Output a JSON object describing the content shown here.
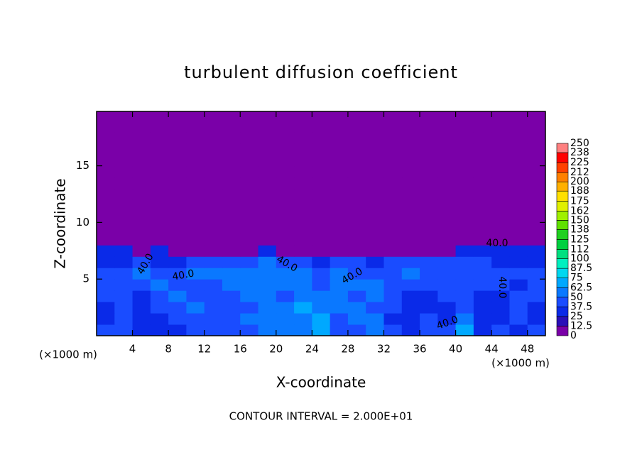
{
  "chart_data": {
    "type": "heatmap",
    "title": "turbulent diffusion coefficient",
    "x_label": "X-coordinate",
    "y_label": "Z-coordinate",
    "x_unit_left": "(×1000 m)",
    "x_unit_right": "(×1000 m)",
    "footnote": "CONTOUR INTERVAL = 2.000E+01",
    "xlim": [
      0,
      50
    ],
    "ylim": [
      0,
      19.8
    ],
    "xticks": [
      4,
      8,
      12,
      16,
      20,
      24,
      28,
      32,
      36,
      40,
      44,
      48
    ],
    "yticks": [
      5,
      10,
      15
    ],
    "x": [
      1,
      3,
      5,
      7,
      9,
      11,
      13,
      15,
      17,
      19,
      21,
      23,
      25,
      27,
      29,
      31,
      33,
      35,
      37,
      39,
      41,
      43,
      45,
      47,
      49
    ],
    "y": [
      0.5,
      1.5,
      2.5,
      3.5,
      4.5,
      5.5,
      6.5,
      7.5,
      8.5,
      9.5,
      10.5,
      11.5,
      12.5,
      13.5,
      14.5,
      15.5,
      16.5,
      17.5,
      18.5,
      19.5
    ],
    "z": [
      [
        40,
        45,
        35,
        30,
        35,
        45,
        40,
        40,
        45,
        50,
        60,
        55,
        70,
        40,
        45,
        60,
        40,
        35,
        45,
        40,
        70,
        35,
        40,
        35,
        40
      ],
      [
        35,
        40,
        30,
        35,
        40,
        45,
        40,
        45,
        50,
        55,
        55,
        60,
        65,
        45,
        50,
        55,
        35,
        30,
        40,
        35,
        55,
        30,
        35,
        40,
        35
      ],
      [
        35,
        40,
        30,
        40,
        45,
        50,
        45,
        40,
        45,
        55,
        50,
        65,
        55,
        50,
        60,
        40,
        40,
        35,
        30,
        35,
        45,
        30,
        30,
        45,
        35
      ],
      [
        40,
        45,
        35,
        40,
        50,
        45,
        40,
        40,
        50,
        60,
        45,
        60,
        50,
        55,
        45,
        55,
        45,
        30,
        35,
        40,
        40,
        35,
        35,
        40,
        40
      ],
      [
        45,
        40,
        45,
        50,
        40,
        40,
        45,
        50,
        55,
        55,
        50,
        55,
        45,
        60,
        50,
        50,
        40,
        45,
        40,
        45,
        45,
        40,
        40,
        35,
        45
      ],
      [
        40,
        40,
        50,
        45,
        45,
        50,
        50,
        55,
        60,
        50,
        55,
        50,
        40,
        50,
        45,
        40,
        45,
        50,
        45,
        45,
        40,
        45,
        45,
        40,
        40
      ],
      [
        35,
        35,
        40,
        30,
        35,
        40,
        40,
        45,
        45,
        55,
        40,
        45,
        35,
        40,
        40,
        35,
        40,
        40,
        45,
        40,
        45,
        40,
        35,
        35,
        35
      ],
      [
        30,
        25,
        0,
        25,
        0,
        0,
        0,
        0,
        0,
        30,
        0,
        0,
        0,
        0,
        0,
        0,
        0,
        0,
        0,
        0,
        30,
        30,
        30,
        30,
        25
      ],
      [
        0,
        0,
        0,
        0,
        0,
        0,
        0,
        0,
        0,
        0,
        0,
        0,
        0,
        0,
        0,
        0,
        0,
        0,
        0,
        0,
        0,
        0,
        0,
        0,
        0
      ],
      [
        0,
        0,
        0,
        0,
        0,
        0,
        0,
        0,
        0,
        0,
        0,
        0,
        0,
        0,
        0,
        0,
        0,
        0,
        0,
        0,
        0,
        0,
        0,
        0,
        0
      ],
      [
        0,
        0,
        0,
        0,
        0,
        0,
        0,
        0,
        0,
        0,
        0,
        0,
        0,
        0,
        0,
        0,
        0,
        0,
        0,
        0,
        0,
        0,
        0,
        0,
        0
      ],
      [
        0,
        0,
        0,
        0,
        0,
        0,
        0,
        0,
        0,
        0,
        0,
        0,
        0,
        0,
        0,
        0,
        0,
        0,
        0,
        0,
        0,
        0,
        0,
        0,
        0
      ],
      [
        0,
        0,
        0,
        0,
        0,
        0,
        0,
        0,
        0,
        0,
        0,
        0,
        0,
        0,
        0,
        0,
        0,
        0,
        0,
        0,
        0,
        0,
        0,
        0,
        0
      ],
      [
        0,
        0,
        0,
        0,
        0,
        0,
        0,
        0,
        0,
        0,
        0,
        0,
        0,
        0,
        0,
        0,
        0,
        0,
        0,
        0,
        0,
        0,
        0,
        0,
        0
      ],
      [
        0,
        0,
        0,
        0,
        0,
        0,
        0,
        0,
        0,
        0,
        0,
        0,
        0,
        0,
        0,
        0,
        0,
        0,
        0,
        0,
        0,
        0,
        0,
        0,
        0
      ],
      [
        0,
        0,
        0,
        0,
        0,
        0,
        0,
        0,
        0,
        0,
        0,
        0,
        0,
        0,
        0,
        0,
        0,
        0,
        0,
        0,
        0,
        0,
        0,
        0,
        0
      ],
      [
        0,
        0,
        0,
        0,
        0,
        0,
        0,
        0,
        0,
        0,
        0,
        0,
        0,
        0,
        0,
        0,
        0,
        0,
        0,
        0,
        0,
        0,
        0,
        0,
        0
      ],
      [
        0,
        0,
        0,
        0,
        0,
        0,
        0,
        0,
        0,
        0,
        0,
        0,
        0,
        0,
        0,
        0,
        0,
        0,
        0,
        0,
        0,
        0,
        0,
        0,
        0
      ],
      [
        0,
        0,
        0,
        0,
        0,
        0,
        0,
        0,
        0,
        0,
        0,
        0,
        0,
        0,
        0,
        0,
        0,
        0,
        0,
        0,
        0,
        0,
        0,
        0,
        0
      ],
      [
        0,
        0,
        0,
        0,
        0,
        0,
        0,
        0,
        0,
        0,
        0,
        0,
        0,
        0,
        0,
        0,
        0,
        0,
        0,
        0,
        0,
        0,
        0,
        0,
        0
      ]
    ],
    "colorbar": {
      "levels": [
        0,
        12.5,
        25,
        37.5,
        50,
        62.5,
        75,
        87.5,
        100,
        112,
        125,
        138,
        150,
        162,
        175,
        188,
        200,
        212,
        225,
        238,
        250
      ],
      "colors": [
        "#7a00a8",
        "#2a0fb8",
        "#0a2ae8",
        "#1a4cff",
        "#0a78ff",
        "#00a8ff",
        "#00d8f0",
        "#00f0c0",
        "#00e080",
        "#00d040",
        "#20d020",
        "#60e000",
        "#a0f000",
        "#e0f000",
        "#ffe000",
        "#ffb000",
        "#ff8000",
        "#ff4000",
        "#ff0000",
        "#ff8080"
      ]
    },
    "annotations": [
      "40.0",
      "40.0",
      "40.0",
      "40.0",
      "40.0",
      "40.0",
      "40.0"
    ]
  }
}
